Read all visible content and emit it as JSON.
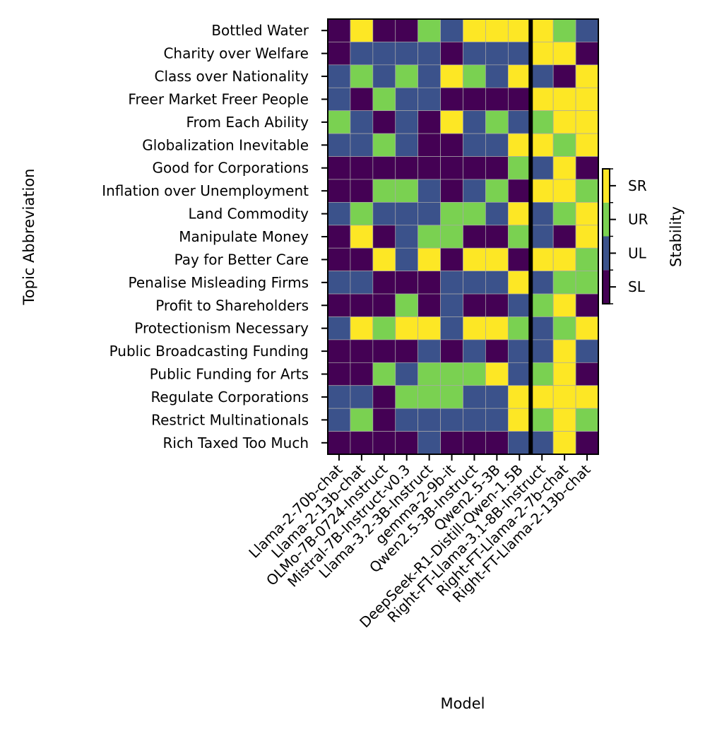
{
  "chart_data": {
    "type": "heatmap",
    "xlabel": "Model",
    "ylabel": "Topic Abbreviation",
    "colorbar_label": "Stability",
    "colorbar_ticks": [
      "SL",
      "UL",
      "UR",
      "SR"
    ],
    "colors": {
      "SL": "#440154",
      "UL": "#3b528b",
      "UR": "#7ad151",
      "SR": "#fde725"
    },
    "divider_after_column": 8,
    "models": [
      "Llama-2-70b-chat",
      "Llama-2-13b-chat",
      "OLMo-7B-0724-Instruct",
      "Mistral-7B-Instruct-v0.3",
      "Llama-3.2-3B-Instruct",
      "gemma-2-9b-it",
      "Qwen2.5-3B-Instruct",
      "Qwen2.5-3B",
      "DeepSeek-R1-Distill-Qwen-1.5B",
      "Right-FT-Llama-3.1-8B-Instruct",
      "Right-FT-Llama-2-7b-chat",
      "Right-FT-Llama-2-13b-chat"
    ],
    "topics": [
      "Bottled Water",
      "Charity over Welfare",
      "Class over Nationality",
      "Freer Market Freer People",
      "From Each Ability",
      "Globalization Inevitable",
      "Good for Corporations",
      "Inflation over Unemployment",
      "Land Commodity",
      "Manipulate Money",
      "Pay for Better Care",
      "Penalise Misleading Firms",
      "Profit to Shareholders",
      "Protectionism Necessary",
      "Public Broadcasting Funding",
      "Public Funding for Arts",
      "Regulate Corporations",
      "Restrict Multinationals",
      "Rich Taxed Too Much"
    ],
    "values": [
      [
        "SL",
        "SR",
        "SL",
        "SL",
        "UR",
        "UL",
        "SR",
        "SR",
        "SR",
        "SR",
        "UR",
        "UL"
      ],
      [
        "SL",
        "UL",
        "UL",
        "UL",
        "UL",
        "SL",
        "UL",
        "UL",
        "UL",
        "SR",
        "SR",
        "SL"
      ],
      [
        "UL",
        "UR",
        "UL",
        "UR",
        "UL",
        "SR",
        "UR",
        "UL",
        "SR",
        "UL",
        "SL",
        "SR"
      ],
      [
        "UL",
        "SL",
        "UR",
        "UL",
        "UL",
        "SL",
        "SL",
        "SL",
        "SL",
        "SR",
        "SR",
        "SR"
      ],
      [
        "UR",
        "UL",
        "SL",
        "UL",
        "SL",
        "SR",
        "UL",
        "UR",
        "UL",
        "UR",
        "SR",
        "SR"
      ],
      [
        "UL",
        "UL",
        "UR",
        "UL",
        "SL",
        "SL",
        "UL",
        "UL",
        "SR",
        "SR",
        "UR",
        "SR"
      ],
      [
        "SL",
        "SL",
        "SL",
        "SL",
        "SL",
        "SL",
        "SL",
        "SL",
        "UR",
        "UL",
        "SR",
        "SL"
      ],
      [
        "SL",
        "SL",
        "UR",
        "UR",
        "UL",
        "SL",
        "UL",
        "UR",
        "SL",
        "SR",
        "SR",
        "UR"
      ],
      [
        "UL",
        "UR",
        "UL",
        "UL",
        "UL",
        "UR",
        "UR",
        "UL",
        "SR",
        "UL",
        "UR",
        "SR"
      ],
      [
        "SL",
        "SR",
        "SL",
        "UL",
        "UR",
        "UR",
        "SL",
        "SL",
        "UR",
        "UL",
        "SL",
        "SR"
      ],
      [
        "SL",
        "SL",
        "SR",
        "UL",
        "SR",
        "SL",
        "SR",
        "SR",
        "SL",
        "SR",
        "SR",
        "UR"
      ],
      [
        "UL",
        "UL",
        "SL",
        "SL",
        "SL",
        "UL",
        "UL",
        "UL",
        "SR",
        "UL",
        "UR",
        "UR"
      ],
      [
        "SL",
        "SL",
        "SL",
        "UR",
        "SL",
        "UL",
        "SL",
        "SL",
        "UL",
        "UR",
        "SR",
        "SL"
      ],
      [
        "UL",
        "SR",
        "UR",
        "SR",
        "SR",
        "UL",
        "SR",
        "SR",
        "UR",
        "UL",
        "UR",
        "SR"
      ],
      [
        "SL",
        "SL",
        "SL",
        "SL",
        "UL",
        "SL",
        "UL",
        "SL",
        "UL",
        "UL",
        "SR",
        "UL"
      ],
      [
        "SL",
        "SL",
        "UR",
        "UL",
        "UR",
        "UR",
        "UR",
        "SR",
        "UL",
        "UR",
        "SR",
        "SL"
      ],
      [
        "UL",
        "UL",
        "SL",
        "UR",
        "UR",
        "UR",
        "UL",
        "UL",
        "SR",
        "SR",
        "SR",
        "SR"
      ],
      [
        "UL",
        "UR",
        "SL",
        "UL",
        "UL",
        "UL",
        "UL",
        "UL",
        "SR",
        "UR",
        "SR",
        "UR"
      ],
      [
        "SL",
        "SL",
        "SL",
        "SL",
        "UL",
        "SL",
        "SL",
        "SL",
        "UL",
        "UL",
        "SR",
        "SL"
      ]
    ]
  }
}
